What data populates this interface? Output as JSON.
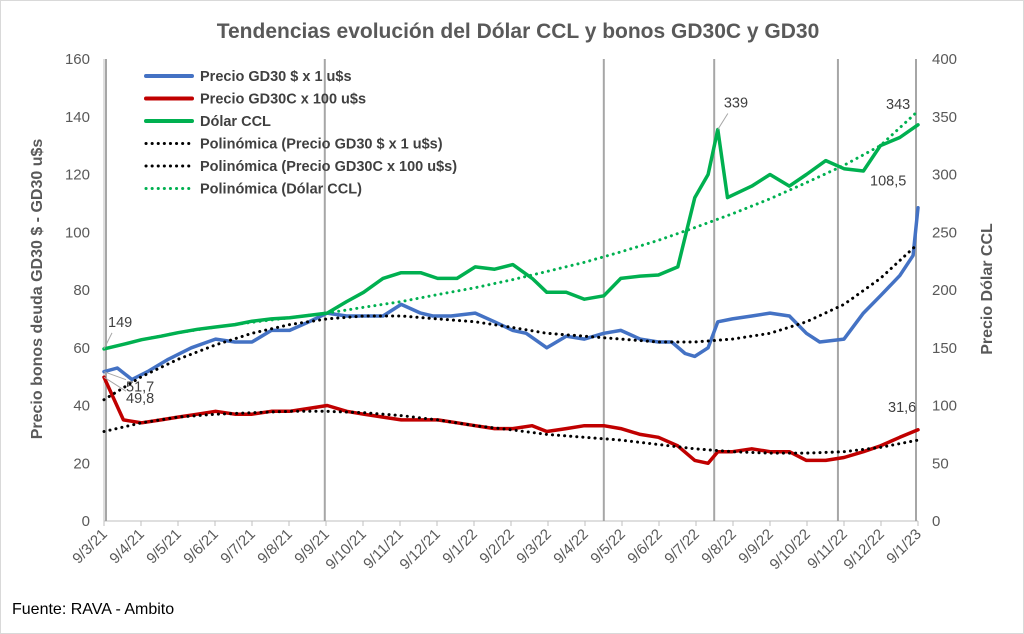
{
  "chart_data": {
    "type": "line",
    "title": "Tendencias evolución del Dólar CCL y bonos GD30C y GD30",
    "ylabel": "Precio bonos deuda GD30 $ - GD30 u$s",
    "y2label": "Precio Dólar CCL",
    "ylim": [
      0,
      160
    ],
    "y2lim": [
      0,
      400
    ],
    "yticks": [
      0,
      20,
      40,
      60,
      80,
      100,
      120,
      140,
      160
    ],
    "y2ticks": [
      0,
      50,
      100,
      150,
      200,
      250,
      300,
      350,
      400
    ],
    "x_ticks": [
      "9/3/21",
      "9/4/21",
      "9/5/21",
      "9/6/21",
      "9/7/21",
      "9/8/21",
      "9/9/21",
      "9/10/21",
      "9/11/21",
      "9/12/21",
      "9/1/22",
      "9/2/22",
      "9/3/22",
      "9/4/22",
      "9/5/22",
      "9/6/22",
      "9/7/22",
      "9/8/22",
      "9/9/22",
      "9/10/22",
      "9/11/22",
      "9/12/22",
      "9/1/23"
    ],
    "vertical_markers": [
      "2021-09-07",
      "2022-04-25",
      "2022-07-25",
      "2022-11-04"
    ],
    "grid": false,
    "legend_position": "top-left",
    "source": "Fuente: RAVA - Ambito",
    "series": [
      {
        "name": "Precio GD30 $ x 1 u$s",
        "axis": "left",
        "color": "#4472c4",
        "x": [
          "2021-03-09",
          "2021-03-20",
          "2021-04-01",
          "2021-04-15",
          "2021-05-01",
          "2021-05-20",
          "2021-06-09",
          "2021-06-25",
          "2021-07-09",
          "2021-07-25",
          "2021-08-09",
          "2021-08-25",
          "2021-09-09",
          "2021-09-25",
          "2021-10-09",
          "2021-10-25",
          "2021-11-09",
          "2021-11-25",
          "2021-12-05",
          "2021-12-20",
          "2022-01-09",
          "2022-01-25",
          "2022-02-09",
          "2022-02-20",
          "2022-03-09",
          "2022-03-25",
          "2022-04-09",
          "2022-04-25",
          "2022-05-09",
          "2022-05-25",
          "2022-06-09",
          "2022-06-20",
          "2022-07-01",
          "2022-07-09",
          "2022-07-20",
          "2022-07-28",
          "2022-08-09",
          "2022-08-25",
          "2022-09-09",
          "2022-09-25",
          "2022-10-09",
          "2022-10-20",
          "2022-11-09",
          "2022-11-25",
          "2022-12-09",
          "2022-12-25",
          "2023-01-05",
          "2023-01-09"
        ],
        "values": [
          51.7,
          53,
          49,
          52,
          56,
          60,
          63,
          62,
          62,
          66,
          66,
          69,
          72,
          71,
          71,
          71,
          75,
          72,
          71,
          71,
          72,
          69,
          66,
          65,
          60,
          64,
          63,
          65,
          66,
          63,
          62,
          62,
          58,
          57,
          60,
          69,
          70,
          71,
          72,
          71,
          65,
          62,
          63,
          72,
          78,
          85,
          92,
          108.5
        ]
      },
      {
        "name": "Precio GD30C x 100 u$s",
        "axis": "left",
        "color": "#c00000",
        "x": [
          "2021-03-09",
          "2021-03-25",
          "2021-04-09",
          "2021-04-25",
          "2021-05-09",
          "2021-05-25",
          "2021-06-09",
          "2021-06-25",
          "2021-07-09",
          "2021-07-25",
          "2021-08-09",
          "2021-08-25",
          "2021-09-09",
          "2021-09-25",
          "2021-10-09",
          "2021-10-25",
          "2021-11-09",
          "2021-11-25",
          "2021-12-09",
          "2021-12-25",
          "2022-01-09",
          "2022-01-25",
          "2022-02-09",
          "2022-02-25",
          "2022-03-09",
          "2022-03-25",
          "2022-04-09",
          "2022-04-25",
          "2022-05-09",
          "2022-05-25",
          "2022-06-09",
          "2022-06-25",
          "2022-07-09",
          "2022-07-20",
          "2022-07-28",
          "2022-08-09",
          "2022-08-25",
          "2022-09-09",
          "2022-09-25",
          "2022-10-09",
          "2022-10-25",
          "2022-11-09",
          "2022-11-25",
          "2022-12-09",
          "2022-12-25",
          "2023-01-09"
        ],
        "values": [
          49.8,
          35,
          34,
          35,
          36,
          37,
          38,
          37,
          37,
          38,
          38,
          39,
          40,
          38,
          37,
          36,
          35,
          35,
          35,
          34,
          33,
          32,
          32,
          33,
          31,
          32,
          33,
          33,
          32,
          30,
          29,
          26,
          21,
          20,
          24,
          24,
          25,
          24,
          24,
          21,
          21,
          22,
          24,
          26,
          29,
          31.6
        ]
      },
      {
        "name": "Dólar CCL",
        "axis": "right",
        "color": "#00b050",
        "x": [
          "2021-03-09",
          "2021-03-25",
          "2021-04-09",
          "2021-04-25",
          "2021-05-09",
          "2021-05-25",
          "2021-06-09",
          "2021-06-25",
          "2021-07-09",
          "2021-07-25",
          "2021-08-09",
          "2021-08-25",
          "2021-09-09",
          "2021-09-25",
          "2021-10-09",
          "2021-10-25",
          "2021-11-09",
          "2021-11-25",
          "2021-12-09",
          "2021-12-25",
          "2022-01-09",
          "2022-01-25",
          "2022-02-09",
          "2022-02-25",
          "2022-03-09",
          "2022-03-25",
          "2022-04-09",
          "2022-04-25",
          "2022-05-09",
          "2022-05-25",
          "2022-06-09",
          "2022-06-25",
          "2022-07-09",
          "2022-07-20",
          "2022-07-28",
          "2022-08-05",
          "2022-08-25",
          "2022-09-09",
          "2022-09-25",
          "2022-10-09",
          "2022-10-25",
          "2022-11-09",
          "2022-11-25",
          "2022-12-09",
          "2022-12-25",
          "2023-01-09"
        ],
        "values": [
          149,
          153,
          157,
          160,
          163,
          166,
          168,
          170,
          173,
          175,
          176,
          178,
          180,
          190,
          198,
          210,
          215,
          215,
          210,
          210,
          220,
          218,
          222,
          210,
          198,
          198,
          192,
          195,
          210,
          212,
          213,
          220,
          280,
          300,
          339,
          280,
          290,
          300,
          290,
          300,
          312,
          305,
          303,
          325,
          332,
          343
        ]
      },
      {
        "name": "Polinómica (Precio GD30 $ x 1 u$s)",
        "axis": "left",
        "color": "#000000",
        "dotted": true,
        "x": [
          "2021-03-09",
          "2021-04-09",
          "2021-05-09",
          "2021-06-09",
          "2021-07-09",
          "2021-08-09",
          "2021-09-09",
          "2021-10-09",
          "2021-11-09",
          "2021-12-09",
          "2022-01-09",
          "2022-02-09",
          "2022-03-09",
          "2022-04-09",
          "2022-05-09",
          "2022-06-09",
          "2022-07-09",
          "2022-08-09",
          "2022-09-09",
          "2022-10-09",
          "2022-11-09",
          "2022-12-09",
          "2023-01-09"
        ],
        "values": [
          42,
          50,
          56,
          61,
          65,
          68,
          70,
          71,
          71,
          70,
          69,
          67,
          65,
          64,
          63,
          62,
          62,
          63,
          65,
          69,
          75,
          84,
          96
        ]
      },
      {
        "name": "Polinómica (Precio GD30C x 100 u$s)",
        "axis": "left",
        "color": "#000000",
        "dotted": true,
        "x": [
          "2021-03-09",
          "2021-04-09",
          "2021-05-09",
          "2021-06-09",
          "2021-07-09",
          "2021-08-09",
          "2021-09-09",
          "2021-10-09",
          "2021-11-09",
          "2021-12-09",
          "2022-01-09",
          "2022-02-09",
          "2022-03-09",
          "2022-04-09",
          "2022-05-09",
          "2022-06-09",
          "2022-07-09",
          "2022-08-09",
          "2022-09-09",
          "2022-10-09",
          "2022-11-09",
          "2022-12-09",
          "2023-01-09"
        ],
        "values": [
          31,
          34,
          36,
          37,
          37.5,
          38,
          38,
          37.5,
          36.5,
          35,
          33,
          31.5,
          30,
          29,
          28,
          26.5,
          25,
          24,
          23.5,
          23.5,
          24,
          25.5,
          28
        ]
      },
      {
        "name": "Polinómica (Dólar CCL)",
        "axis": "right",
        "color": "#00b050",
        "dotted": true,
        "x": [
          "2021-03-09",
          "2021-04-09",
          "2021-05-09",
          "2021-06-09",
          "2021-07-09",
          "2021-08-09",
          "2021-09-09",
          "2021-10-09",
          "2021-11-09",
          "2021-12-09",
          "2022-01-09",
          "2022-02-09",
          "2022-03-09",
          "2022-04-09",
          "2022-05-09",
          "2022-06-09",
          "2022-07-09",
          "2022-08-09",
          "2022-09-09",
          "2022-10-09",
          "2022-11-09",
          "2022-12-09",
          "2023-01-09"
        ],
        "values": [
          149,
          157,
          163,
          168,
          172,
          176,
          180,
          185,
          190,
          196,
          202,
          209,
          216,
          224,
          233,
          243,
          254,
          266,
          279,
          293,
          308,
          325,
          355
        ]
      }
    ],
    "annotations": [
      {
        "text": "149",
        "series": "Dólar CCL",
        "x": "2021-03-09"
      },
      {
        "text": "51,7",
        "series": "Precio GD30 $ x 1 u$s",
        "x": "2021-03-09"
      },
      {
        "text": "49,8",
        "series": "Precio GD30C x 100 u$s",
        "x": "2021-03-09"
      },
      {
        "text": "339",
        "series": "Dólar CCL",
        "x": "2022-07-28"
      },
      {
        "text": "343",
        "series": "Dólar CCL",
        "x": "2023-01-09"
      },
      {
        "text": "108,5",
        "series": "Precio GD30 $ x 1 u$s",
        "x": "2023-01-09"
      },
      {
        "text": "31,6",
        "series": "Precio GD30C x 100 u$s",
        "x": "2023-01-09"
      }
    ]
  }
}
